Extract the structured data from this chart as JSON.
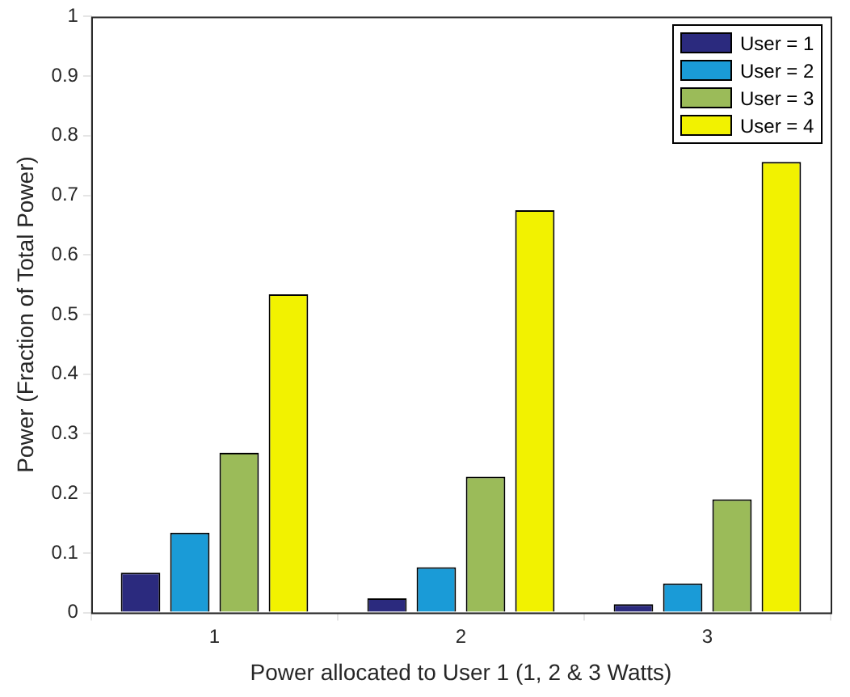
{
  "chart_data": {
    "type": "bar",
    "xlabel": "Power allocated to User 1 (1, 2 & 3 Watts)",
    "ylabel": "Power (Fraction of Total Power)",
    "categories": [
      "1",
      "2",
      "3"
    ],
    "series": [
      {
        "name": "User = 1",
        "color": "#2b2a7e",
        "values": [
          0.067,
          0.024,
          0.014
        ]
      },
      {
        "name": "User = 2",
        "color": "#1a9bd7",
        "values": [
          0.134,
          0.076,
          0.049
        ]
      },
      {
        "name": "User = 3",
        "color": "#9bbb59",
        "values": [
          0.268,
          0.228,
          0.19
        ]
      },
      {
        "name": "User = 4",
        "color": "#f2f200",
        "values": [
          0.534,
          0.675,
          0.756
        ]
      }
    ],
    "ylim": [
      0,
      1
    ],
    "yticks": [
      0,
      0.1,
      0.2,
      0.3,
      0.4,
      0.5,
      0.6,
      0.7,
      0.8,
      0.9,
      1
    ],
    "grid": false,
    "legend": "top right"
  }
}
